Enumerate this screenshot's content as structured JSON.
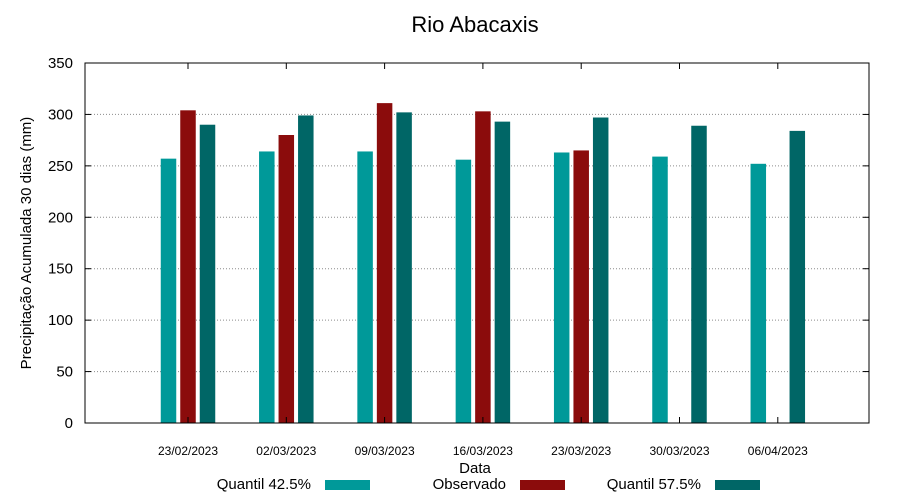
{
  "chart_data": {
    "type": "bar",
    "title": "Rio Abacaxis",
    "xlabel": "Data",
    "ylabel": "Precipitação Acumulada 30 dias (mm)",
    "ylim": [
      0,
      350
    ],
    "yticks": [
      0,
      50,
      100,
      150,
      200,
      250,
      300,
      350
    ],
    "grid": true,
    "legend_position": "bottom",
    "categories": [
      "23/02/2023",
      "02/03/2023",
      "09/03/2023",
      "16/03/2023",
      "23/03/2023",
      "30/03/2023",
      "06/04/2023"
    ],
    "series": [
      {
        "name": "Quantil 42.5%",
        "color": "#009999",
        "values": [
          257,
          264,
          264,
          256,
          263,
          259,
          252
        ]
      },
      {
        "name": "Observado",
        "color": "#8b0c0c",
        "values": [
          304,
          280,
          311,
          303,
          265,
          null,
          null
        ]
      },
      {
        "name": "Quantil 57.5%",
        "color": "#006666",
        "values": [
          290,
          299,
          302,
          293,
          297,
          289,
          284
        ]
      }
    ]
  }
}
